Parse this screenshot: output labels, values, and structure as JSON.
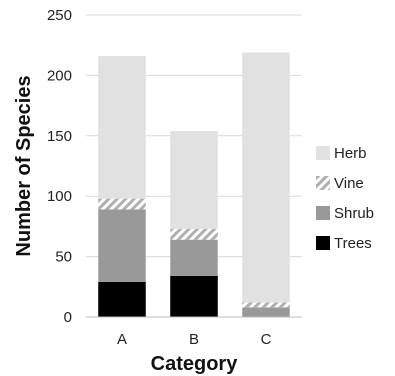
{
  "chart_data": {
    "type": "bar",
    "stacked": true,
    "categories": [
      "A",
      "B",
      "C"
    ],
    "series": [
      {
        "name": "Trees",
        "values": [
          29,
          34,
          0
        ],
        "color": "#000000",
        "pattern": "solid"
      },
      {
        "name": "Shrub",
        "values": [
          60,
          30,
          8
        ],
        "color": "#999999",
        "pattern": "solid"
      },
      {
        "name": "Vine",
        "values": [
          9,
          9,
          4
        ],
        "color": "#b5b5b5",
        "pattern": "diagonal-stripes"
      },
      {
        "name": "Herb",
        "values": [
          118,
          81,
          207
        ],
        "color": "#e1e1e1",
        "pattern": "solid"
      }
    ],
    "xlabel": "Category",
    "ylabel": "Number of Species",
    "ylim": [
      0,
      250
    ],
    "yticks": [
      0,
      50,
      100,
      150,
      200,
      250
    ],
    "grid": true,
    "legend": {
      "position": "right",
      "order": [
        "Herb",
        "Vine",
        "Shrub",
        "Trees"
      ]
    }
  }
}
